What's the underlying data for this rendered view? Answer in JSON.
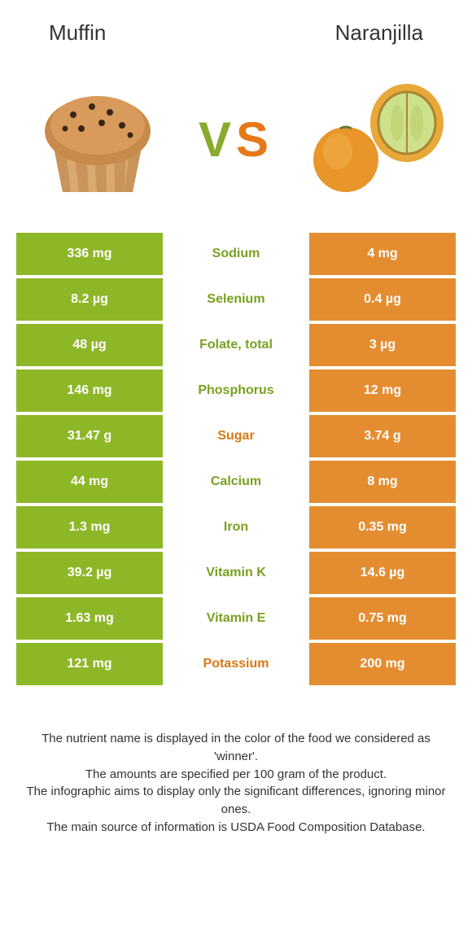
{
  "colors": {
    "green": "#8eb728",
    "orange": "#e48d30",
    "mid_green": "#7aa020",
    "mid_orange": "#d87815",
    "background": "#ffffff"
  },
  "title_left": "Muffin",
  "title_right": "Naranjilla",
  "vs": {
    "v": "V",
    "s": "S"
  },
  "rows": [
    {
      "left": "336 mg",
      "mid": "Sodium",
      "right": "4 mg",
      "winner": "left",
      "left_color": "green",
      "right_color": "orange"
    },
    {
      "left": "8.2 µg",
      "mid": "Selenium",
      "right": "0.4 µg",
      "winner": "left",
      "left_color": "green",
      "right_color": "orange"
    },
    {
      "left": "48 µg",
      "mid": "Folate, total",
      "right": "3 µg",
      "winner": "left",
      "left_color": "green",
      "right_color": "orange"
    },
    {
      "left": "146 mg",
      "mid": "Phosphorus",
      "right": "12 mg",
      "winner": "left",
      "left_color": "green",
      "right_color": "orange"
    },
    {
      "left": "31.47 g",
      "mid": "Sugar",
      "right": "3.74 g",
      "winner": "right",
      "left_color": "green",
      "right_color": "orange"
    },
    {
      "left": "44 mg",
      "mid": "Calcium",
      "right": "8 mg",
      "winner": "left",
      "left_color": "green",
      "right_color": "orange"
    },
    {
      "left": "1.3 mg",
      "mid": "Iron",
      "right": "0.35 mg",
      "winner": "left",
      "left_color": "green",
      "right_color": "orange"
    },
    {
      "left": "39.2 µg",
      "mid": "Vitamin K",
      "right": "14.6 µg",
      "winner": "left",
      "left_color": "green",
      "right_color": "orange"
    },
    {
      "left": "1.63 mg",
      "mid": "Vitamin E",
      "right": "0.75 mg",
      "winner": "left",
      "left_color": "green",
      "right_color": "orange"
    },
    {
      "left": "121 mg",
      "mid": "Potassium",
      "right": "200 mg",
      "winner": "right",
      "left_color": "green",
      "right_color": "orange"
    }
  ],
  "footer": {
    "line1": "The nutrient name is displayed in the color of the food we considered as 'winner'.",
    "line2": "The amounts are specified per 100 gram of the product.",
    "line3": "The infographic aims to display only the significant differences, ignoring minor ones.",
    "line4": "The main source of information is USDA Food Composition Database."
  }
}
